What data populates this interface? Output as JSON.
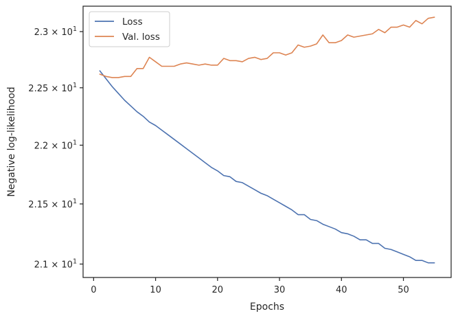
{
  "chart_data": {
    "type": "line",
    "xlabel": "Epochs",
    "ylabel": "Negative log-likelihood",
    "xlim": [
      -1.7,
      57.7
    ],
    "ylim": [
      20.89,
      23.23
    ],
    "y_scale": "log",
    "grid": false,
    "legend_position": "top-left",
    "x_ticks": [
      0,
      10,
      20,
      30,
      40,
      50
    ],
    "y_ticks": [
      {
        "value": 21.0,
        "base": "2.1",
        "exp": "1"
      },
      {
        "value": 21.5,
        "base": "2.15",
        "exp": "1"
      },
      {
        "value": 22.0,
        "base": "2.2",
        "exp": "1"
      },
      {
        "value": 22.5,
        "base": "2.25",
        "exp": "1"
      },
      {
        "value": 23.0,
        "base": "2.3",
        "exp": "1"
      }
    ],
    "series": [
      {
        "name": "Loss",
        "color": "#4c72b0",
        "x": [
          1,
          2,
          3,
          4,
          5,
          6,
          7,
          8,
          9,
          10,
          11,
          12,
          13,
          14,
          15,
          16,
          17,
          18,
          19,
          20,
          21,
          22,
          23,
          24,
          25,
          26,
          27,
          28,
          29,
          30,
          31,
          32,
          33,
          34,
          35,
          36,
          37,
          38,
          39,
          40,
          41,
          42,
          43,
          44,
          45,
          46,
          47,
          48,
          49,
          50,
          51,
          52,
          53,
          54,
          55
        ],
        "y": [
          22.65,
          22.58,
          22.51,
          22.45,
          22.39,
          22.34,
          22.29,
          22.25,
          22.2,
          22.17,
          22.13,
          22.09,
          22.05,
          22.01,
          21.97,
          21.93,
          21.89,
          21.85,
          21.81,
          21.78,
          21.74,
          21.73,
          21.69,
          21.68,
          21.65,
          21.62,
          21.59,
          21.57,
          21.54,
          21.51,
          21.48,
          21.45,
          21.41,
          21.41,
          21.37,
          21.36,
          21.33,
          21.31,
          21.29,
          21.26,
          21.25,
          21.23,
          21.2,
          21.2,
          21.17,
          21.17,
          21.13,
          21.12,
          21.1,
          21.08,
          21.06,
          21.03,
          21.03,
          21.01,
          21.01
        ]
      },
      {
        "name": "Val. loss",
        "color": "#dd8452",
        "x": [
          1,
          2,
          3,
          4,
          5,
          6,
          7,
          8,
          9,
          10,
          11,
          12,
          13,
          14,
          15,
          16,
          17,
          18,
          19,
          20,
          21,
          22,
          23,
          24,
          25,
          26,
          27,
          28,
          29,
          30,
          31,
          32,
          33,
          34,
          35,
          36,
          37,
          38,
          39,
          40,
          41,
          42,
          43,
          44,
          45,
          46,
          47,
          48,
          49,
          50,
          51,
          52,
          53,
          54,
          55
        ],
        "y": [
          22.62,
          22.6,
          22.59,
          22.59,
          22.6,
          22.6,
          22.67,
          22.67,
          22.77,
          22.73,
          22.69,
          22.69,
          22.69,
          22.71,
          22.72,
          22.71,
          22.7,
          22.71,
          22.7,
          22.7,
          22.76,
          22.74,
          22.74,
          22.73,
          22.76,
          22.77,
          22.75,
          22.76,
          22.81,
          22.81,
          22.79,
          22.81,
          22.88,
          22.86,
          22.87,
          22.89,
          22.97,
          22.9,
          22.9,
          22.92,
          22.97,
          22.95,
          22.96,
          22.97,
          22.98,
          23.02,
          22.99,
          23.04,
          23.04,
          23.06,
          23.04,
          23.1,
          23.07,
          23.12,
          23.13
        ]
      }
    ]
  }
}
